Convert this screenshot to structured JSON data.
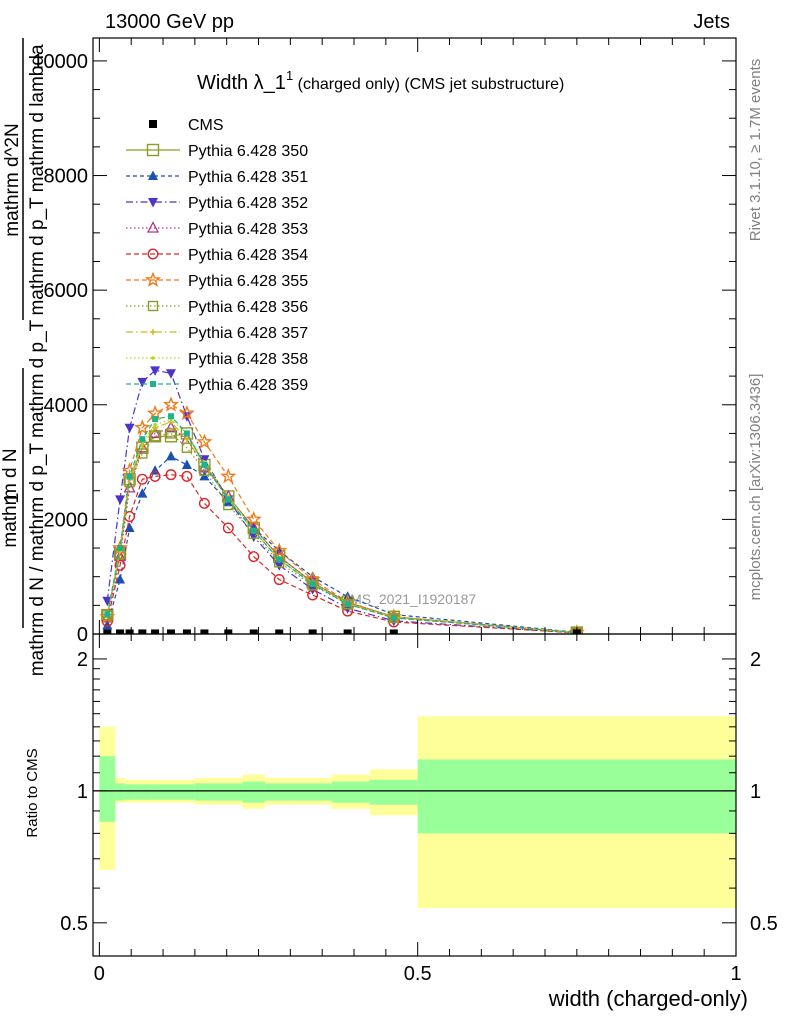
{
  "header": {
    "left": "13000 GeV pp",
    "right": "Jets"
  },
  "side_labels": {
    "rivet": "Rivet 3.1.10, ≥ 1.7M events",
    "mcplots": "mcplots.cern.ch [arXiv:1306.3436]"
  },
  "ylabel_main": {
    "one": "1",
    "n1": "mathrm d N",
    "d1": "mathrm d N / mathrm d p_T mathrm d p_T",
    "n2": "mathrm d^2N",
    "d2": "mathrm d p_T mathrm d lambda"
  },
  "watermark": "CMS_2021_I1920187",
  "chart_data": [
    {
      "type": "line",
      "title": "Width λ_1^1 (charged only) (CMS jet substructure)",
      "title_main": "Width λ_1",
      "title_sup": "1",
      "title_rest": " (charged only) (CMS jet substructure)",
      "xlabel": "width (charged-only)",
      "xlim": [
        -0.01,
        1.0
      ],
      "ylim": [
        0,
        10400
      ],
      "yticks": [
        0,
        2000,
        4000,
        6000,
        8000,
        10000
      ],
      "ytick_labels": [
        "0",
        "2000",
        "4000",
        "6000",
        "8000",
        "10000"
      ],
      "legend_position": "top-left",
      "x": [
        0.0125,
        0.0325,
        0.0475,
        0.0675,
        0.0875,
        0.1125,
        0.1375,
        0.165,
        0.2025,
        0.2425,
        0.2825,
        0.335,
        0.39,
        0.4625,
        0.75
      ],
      "series": [
        {
          "name": "CMS",
          "color": "#000000",
          "marker": "square-filled",
          "dash": "none",
          "values": [
            9.5,
            9.5,
            9.5,
            9.5,
            9.5,
            9.5,
            9.5,
            9.5,
            9.5,
            9.5,
            9.5,
            9.5,
            9.5,
            9.5,
            9.5
          ]
        },
        {
          "name": "Pythia 6.428 350",
          "color": "#8f9b28",
          "marker": "square-open-big",
          "dash": "none",
          "values": [
            330,
            1400,
            2700,
            3250,
            3450,
            3450,
            3500,
            2950,
            2400,
            1850,
            1350,
            900,
            550,
            300,
            25
          ]
        },
        {
          "name": "Pythia 6.428 351",
          "color": "#1a52b3",
          "marker": "triangle-up",
          "dash": "4,3",
          "values": [
            150,
            950,
            1850,
            2450,
            2850,
            3100,
            2950,
            2750,
            2300,
            1850,
            1450,
            1000,
            650,
            340,
            30
          ]
        },
        {
          "name": "Pythia 6.428 352",
          "color": "#4d33c7",
          "marker": "triangle-down",
          "dash": "7,3,1.5,3",
          "values": [
            580,
            2350,
            3600,
            4400,
            4600,
            4550,
            3800,
            3050,
            2350,
            1700,
            1200,
            780,
            450,
            230,
            20
          ]
        },
        {
          "name": "Pythia 6.428 353",
          "color": "#b3338f",
          "marker": "triangle-open",
          "dash": "1.5,2.5",
          "values": [
            280,
            1350,
            2550,
            3250,
            3500,
            3600,
            3400,
            2900,
            2400,
            1850,
            1350,
            900,
            550,
            300,
            25
          ]
        },
        {
          "name": "Pythia 6.428 354",
          "color": "#d9262b",
          "marker": "circle-open",
          "dash": "5,3",
          "values": [
            220,
            1200,
            2050,
            2700,
            2750,
            2780,
            2750,
            2280,
            1850,
            1350,
            950,
            680,
            400,
            210,
            20
          ]
        },
        {
          "name": "Pythia 6.428 355",
          "color": "#f07a1a",
          "marker": "star-open",
          "dash": "5,3",
          "values": [
            300,
            1500,
            2850,
            3600,
            3850,
            4000,
            3850,
            3350,
            2750,
            2000,
            1450,
            950,
            560,
            300,
            25
          ]
        },
        {
          "name": "Pythia 6.428 356",
          "color": "#8f9b28",
          "marker": "square-open",
          "dash": "1.5,2.5",
          "values": [
            330,
            1400,
            2650,
            3150,
            3450,
            3500,
            3250,
            2850,
            2250,
            1750,
            1250,
            850,
            520,
            280,
            25
          ]
        },
        {
          "name": "Pythia 6.428 357",
          "color": "#d4bb1a",
          "marker": "cross-small",
          "dash": "7,3,1.5,3",
          "values": [
            320,
            1450,
            2700,
            3300,
            3600,
            3700,
            3400,
            2950,
            2350,
            1800,
            1300,
            880,
            530,
            290,
            25
          ]
        },
        {
          "name": "Pythia 6.428 358",
          "color": "#b5d61a",
          "marker": "dot",
          "dash": "1.5,2.5",
          "values": [
            320,
            1450,
            2700,
            3350,
            3650,
            3750,
            3500,
            3000,
            2400,
            1800,
            1300,
            880,
            530,
            290,
            25
          ]
        },
        {
          "name": "Pythia 6.428 359",
          "color": "#1ab58c",
          "marker": "square-small",
          "dash": "5,3",
          "values": [
            340,
            1500,
            2750,
            3400,
            3750,
            3800,
            3500,
            2950,
            2350,
            1800,
            1300,
            870,
            520,
            280,
            25
          ]
        }
      ]
    },
    {
      "type": "area",
      "ylabel": "Ratio to CMS",
      "xlim": [
        -0.01,
        1.0
      ],
      "ylim": [
        0.42,
        2.28
      ],
      "yticks": [
        0.5,
        1,
        2
      ],
      "ytick_labels": [
        "0.5",
        "1",
        "2"
      ],
      "xticks": [
        0,
        0.5,
        1
      ],
      "xtick_labels": [
        "0",
        "0.5",
        "1"
      ],
      "reference_line": 1,
      "bins": [
        {
          "x0": 0.0,
          "x1": 0.025,
          "green": [
            0.85,
            1.2
          ],
          "yellow": [
            0.66,
            1.4
          ]
        },
        {
          "x0": 0.025,
          "x1": 0.04,
          "green": [
            0.95,
            1.04
          ],
          "yellow": [
            0.94,
            1.07
          ]
        },
        {
          "x0": 0.04,
          "x1": 0.055,
          "green": [
            0.955,
            1.035
          ],
          "yellow": [
            0.94,
            1.06
          ]
        },
        {
          "x0": 0.055,
          "x1": 0.08,
          "green": [
            0.955,
            1.035
          ],
          "yellow": [
            0.94,
            1.06
          ]
        },
        {
          "x0": 0.08,
          "x1": 0.1,
          "green": [
            0.955,
            1.035
          ],
          "yellow": [
            0.94,
            1.06
          ]
        },
        {
          "x0": 0.1,
          "x1": 0.125,
          "green": [
            0.955,
            1.035
          ],
          "yellow": [
            0.94,
            1.06
          ]
        },
        {
          "x0": 0.125,
          "x1": 0.15,
          "green": [
            0.955,
            1.035
          ],
          "yellow": [
            0.94,
            1.06
          ]
        },
        {
          "x0": 0.15,
          "x1": 0.18,
          "green": [
            0.95,
            1.04
          ],
          "yellow": [
            0.93,
            1.07
          ]
        },
        {
          "x0": 0.18,
          "x1": 0.225,
          "green": [
            0.95,
            1.04
          ],
          "yellow": [
            0.93,
            1.07
          ]
        },
        {
          "x0": 0.225,
          "x1": 0.26,
          "green": [
            0.94,
            1.05
          ],
          "yellow": [
            0.91,
            1.09
          ]
        },
        {
          "x0": 0.26,
          "x1": 0.305,
          "green": [
            0.95,
            1.04
          ],
          "yellow": [
            0.93,
            1.07
          ]
        },
        {
          "x0": 0.305,
          "x1": 0.365,
          "green": [
            0.95,
            1.04
          ],
          "yellow": [
            0.93,
            1.07
          ]
        },
        {
          "x0": 0.365,
          "x1": 0.425,
          "green": [
            0.94,
            1.05
          ],
          "yellow": [
            0.91,
            1.09
          ]
        },
        {
          "x0": 0.425,
          "x1": 0.5,
          "green": [
            0.93,
            1.06
          ],
          "yellow": [
            0.88,
            1.12
          ]
        },
        {
          "x0": 0.5,
          "x1": 1.0,
          "green": [
            0.8,
            1.18
          ],
          "yellow": [
            0.54,
            1.48
          ]
        }
      ]
    }
  ]
}
